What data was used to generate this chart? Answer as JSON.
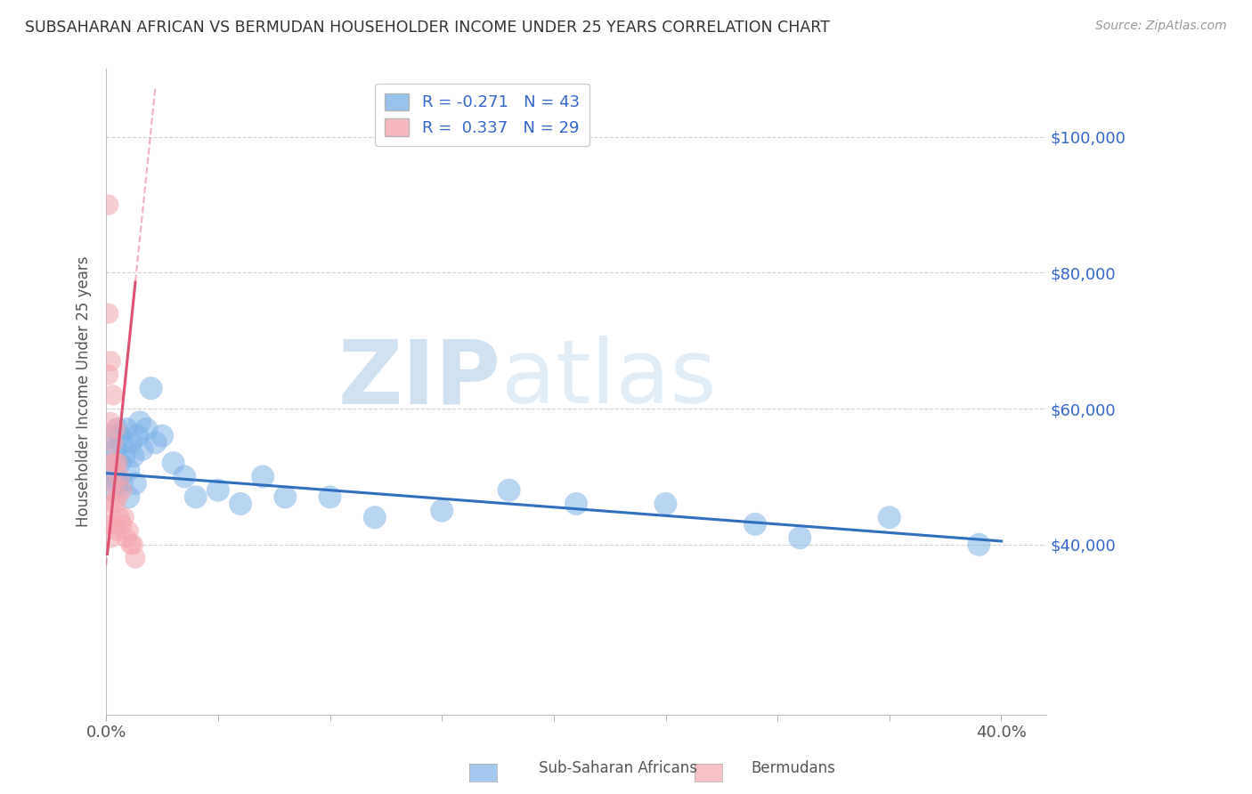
{
  "title": "SUBSAHARAN AFRICAN VS BERMUDAN HOUSEHOLDER INCOME UNDER 25 YEARS CORRELATION CHART",
  "source": "Source: ZipAtlas.com",
  "ylabel": "Householder Income Under 25 years",
  "xlim": [
    0.0,
    0.42
  ],
  "ylim": [
    15000,
    110000
  ],
  "yticks": [
    40000,
    60000,
    80000,
    100000
  ],
  "ytick_labels": [
    "$40,000",
    "$60,000",
    "$80,000",
    "$100,000"
  ],
  "blue_color": "#7EB3E8",
  "pink_color": "#F4A7B0",
  "trend_blue_color": "#2E6FBF",
  "trend_pink_color": "#E05070",
  "blue_R": -0.271,
  "blue_N": 43,
  "pink_R": 0.337,
  "pink_N": 29,
  "watermark_zip": "ZIP",
  "watermark_atlas": "atlas",
  "legend_label_blue": "Sub-Saharan Africans",
  "legend_label_pink": "Bermudans",
  "blue_x": [
    0.001,
    0.002,
    0.003,
    0.003,
    0.004,
    0.004,
    0.005,
    0.005,
    0.006,
    0.006,
    0.007,
    0.007,
    0.008,
    0.009,
    0.01,
    0.01,
    0.011,
    0.012,
    0.013,
    0.014,
    0.015,
    0.016,
    0.018,
    0.02,
    0.022,
    0.025,
    0.03,
    0.035,
    0.04,
    0.05,
    0.06,
    0.07,
    0.08,
    0.1,
    0.12,
    0.15,
    0.18,
    0.21,
    0.25,
    0.29,
    0.31,
    0.35,
    0.39
  ],
  "blue_y": [
    53000,
    51000,
    56000,
    48000,
    54000,
    50000,
    57000,
    49000,
    56000,
    52000,
    55000,
    49000,
    53000,
    57000,
    51000,
    47000,
    55000,
    53000,
    49000,
    56000,
    58000,
    54000,
    57000,
    63000,
    55000,
    56000,
    52000,
    50000,
    47000,
    48000,
    46000,
    50000,
    47000,
    47000,
    44000,
    45000,
    48000,
    46000,
    46000,
    43000,
    41000,
    44000,
    40000
  ],
  "pink_x": [
    0.001,
    0.001,
    0.001,
    0.001,
    0.002,
    0.002,
    0.002,
    0.002,
    0.002,
    0.003,
    0.003,
    0.003,
    0.003,
    0.004,
    0.004,
    0.004,
    0.005,
    0.005,
    0.005,
    0.006,
    0.006,
    0.007,
    0.007,
    0.008,
    0.009,
    0.01,
    0.011,
    0.012,
    0.013
  ],
  "pink_y": [
    90000,
    74000,
    65000,
    43000,
    67000,
    58000,
    52000,
    46000,
    41000,
    62000,
    55000,
    49000,
    43000,
    57000,
    52000,
    46000,
    52000,
    47000,
    42000,
    50000,
    44000,
    48000,
    43000,
    44000,
    41000,
    42000,
    40000,
    40000,
    38000
  ],
  "blue_line_x0": 0.0,
  "blue_line_x1": 0.4,
  "blue_line_y0": 50500,
  "blue_line_y1": 40500,
  "pink_line_solid_x0": 0.001,
  "pink_line_solid_x1": 0.013,
  "pink_line_slope": 3200000,
  "pink_line_intercept": 37000
}
